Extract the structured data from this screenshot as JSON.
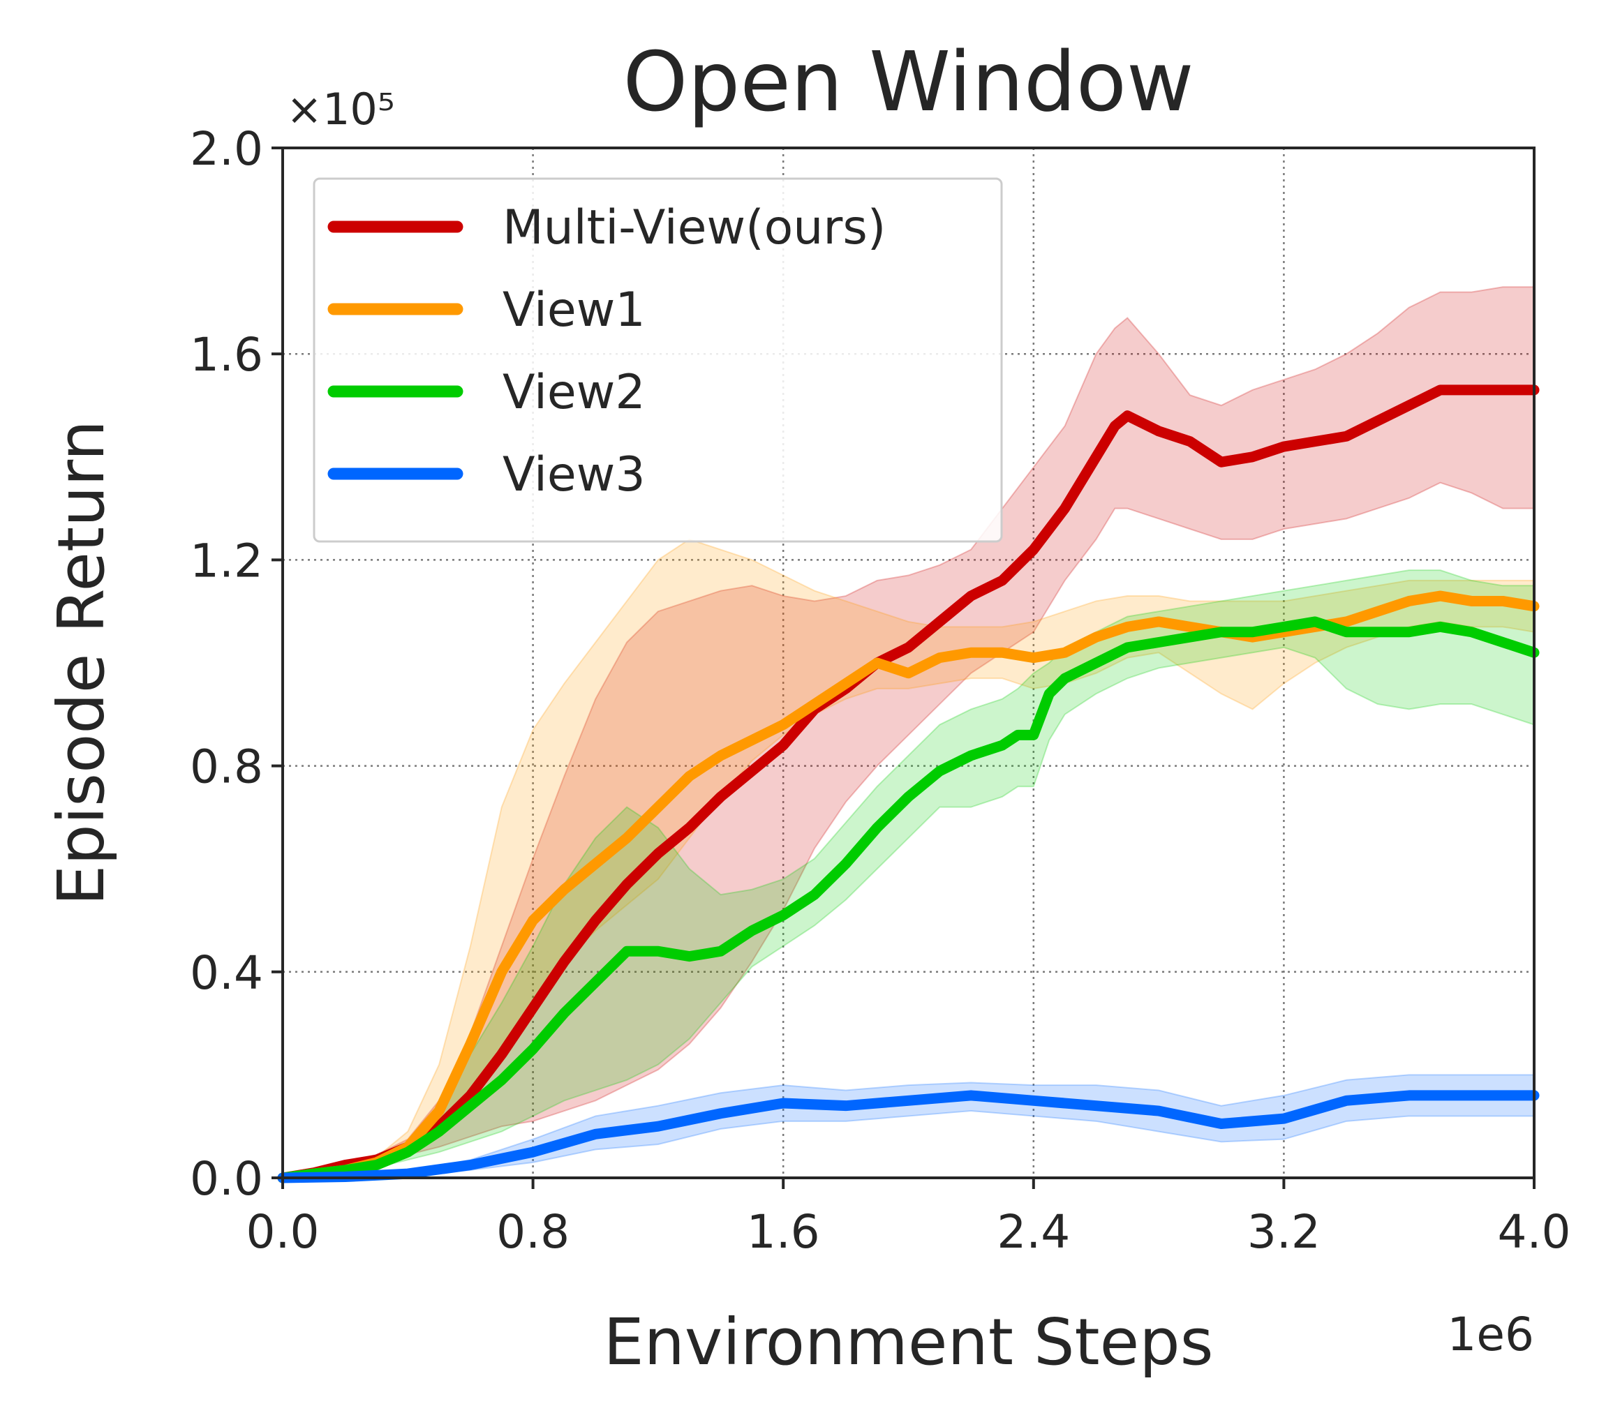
{
  "chart_data": {
    "type": "line",
    "title": "Open Window",
    "xlabel": "Environment Steps",
    "ylabel": "Episode Return",
    "x_multiplier_label": "1e6",
    "y_multiplier_label": "×10⁵",
    "xlim": [
      0,
      4.0
    ],
    "ylim": [
      0,
      2.0
    ],
    "x_ticks": [
      0.0,
      0.8,
      1.6,
      2.4,
      3.2,
      4.0
    ],
    "x_tick_labels": [
      "0.0",
      "0.8",
      "1.6",
      "2.4",
      "3.2",
      "4.0"
    ],
    "y_ticks": [
      0.0,
      0.4,
      0.8,
      1.2,
      1.6,
      2.0
    ],
    "y_tick_labels": [
      "0.0",
      "0.4",
      "0.8",
      "1.2",
      "1.6",
      "2.0"
    ],
    "grid": true,
    "legend_position": "top-left",
    "series": [
      {
        "name": "Multi-View(ours)",
        "color": "#cc0000",
        "x": [
          0,
          0.1,
          0.2,
          0.3,
          0.4,
          0.5,
          0.6,
          0.7,
          0.8,
          0.9,
          1.0,
          1.1,
          1.2,
          1.3,
          1.4,
          1.5,
          1.6,
          1.7,
          1.8,
          1.9,
          2.0,
          2.1,
          2.2,
          2.3,
          2.4,
          2.5,
          2.6,
          2.66,
          2.7,
          2.8,
          2.9,
          3.0,
          3.1,
          3.2,
          3.3,
          3.4,
          3.5,
          3.6,
          3.7,
          3.8,
          3.9,
          4.0
        ],
        "y": [
          0.0,
          0.01,
          0.025,
          0.035,
          0.06,
          0.1,
          0.16,
          0.24,
          0.33,
          0.42,
          0.5,
          0.57,
          0.63,
          0.68,
          0.74,
          0.79,
          0.84,
          0.91,
          0.95,
          1.0,
          1.03,
          1.08,
          1.13,
          1.16,
          1.22,
          1.3,
          1.4,
          1.46,
          1.48,
          1.45,
          1.43,
          1.39,
          1.4,
          1.42,
          1.43,
          1.44,
          1.47,
          1.5,
          1.53,
          1.53,
          1.53,
          1.53
        ],
        "upper": [
          0.0,
          0.012,
          0.03,
          0.045,
          0.075,
          0.15,
          0.28,
          0.45,
          0.62,
          0.78,
          0.93,
          1.04,
          1.1,
          1.12,
          1.14,
          1.15,
          1.13,
          1.12,
          1.13,
          1.16,
          1.17,
          1.19,
          1.22,
          1.3,
          1.38,
          1.46,
          1.6,
          1.65,
          1.67,
          1.6,
          1.52,
          1.5,
          1.53,
          1.55,
          1.57,
          1.6,
          1.64,
          1.69,
          1.72,
          1.72,
          1.73,
          1.73
        ],
        "lower": [
          0.0,
          0.008,
          0.02,
          0.025,
          0.045,
          0.06,
          0.08,
          0.1,
          0.11,
          0.13,
          0.15,
          0.18,
          0.21,
          0.26,
          0.33,
          0.42,
          0.52,
          0.64,
          0.73,
          0.8,
          0.86,
          0.92,
          0.98,
          1.02,
          1.06,
          1.16,
          1.24,
          1.3,
          1.3,
          1.28,
          1.26,
          1.24,
          1.24,
          1.26,
          1.27,
          1.28,
          1.3,
          1.32,
          1.35,
          1.33,
          1.3,
          1.3
        ]
      },
      {
        "name": "View1",
        "color": "#ff9900",
        "x": [
          0,
          0.1,
          0.2,
          0.3,
          0.4,
          0.5,
          0.6,
          0.7,
          0.8,
          0.9,
          1.0,
          1.1,
          1.2,
          1.3,
          1.4,
          1.5,
          1.6,
          1.7,
          1.8,
          1.9,
          2.0,
          2.1,
          2.2,
          2.3,
          2.4,
          2.5,
          2.6,
          2.7,
          2.8,
          2.9,
          3.0,
          3.1,
          3.2,
          3.3,
          3.4,
          3.5,
          3.6,
          3.7,
          3.8,
          3.9,
          4.0
        ],
        "y": [
          0.0,
          0.008,
          0.015,
          0.03,
          0.06,
          0.13,
          0.26,
          0.4,
          0.5,
          0.56,
          0.61,
          0.66,
          0.72,
          0.78,
          0.82,
          0.85,
          0.88,
          0.92,
          0.96,
          1.0,
          0.98,
          1.01,
          1.02,
          1.02,
          1.01,
          1.02,
          1.05,
          1.07,
          1.08,
          1.07,
          1.06,
          1.05,
          1.06,
          1.07,
          1.08,
          1.1,
          1.12,
          1.13,
          1.12,
          1.12,
          1.11
        ],
        "upper": [
          0.0,
          0.01,
          0.02,
          0.04,
          0.09,
          0.22,
          0.45,
          0.72,
          0.87,
          0.96,
          1.04,
          1.12,
          1.2,
          1.24,
          1.22,
          1.2,
          1.17,
          1.14,
          1.12,
          1.1,
          1.08,
          1.07,
          1.07,
          1.07,
          1.08,
          1.1,
          1.12,
          1.13,
          1.13,
          1.12,
          1.12,
          1.12,
          1.12,
          1.13,
          1.14,
          1.15,
          1.16,
          1.16,
          1.16,
          1.16,
          1.16
        ],
        "lower": [
          0.0,
          0.006,
          0.01,
          0.02,
          0.04,
          0.08,
          0.16,
          0.24,
          0.33,
          0.42,
          0.48,
          0.53,
          0.58,
          0.66,
          0.74,
          0.81,
          0.86,
          0.9,
          0.93,
          0.95,
          0.95,
          0.96,
          0.97,
          0.97,
          0.95,
          0.96,
          0.98,
          1.01,
          1.02,
          0.98,
          0.94,
          0.91,
          0.96,
          1.0,
          1.03,
          1.05,
          1.07,
          1.08,
          1.07,
          1.07,
          1.06
        ]
      },
      {
        "name": "View2",
        "color": "#00cc00",
        "x": [
          0,
          0.1,
          0.2,
          0.3,
          0.4,
          0.5,
          0.6,
          0.7,
          0.8,
          0.9,
          1.0,
          1.1,
          1.2,
          1.3,
          1.4,
          1.5,
          1.6,
          1.7,
          1.8,
          1.9,
          2.0,
          2.1,
          2.2,
          2.3,
          2.35,
          2.4,
          2.45,
          2.5,
          2.6,
          2.7,
          2.8,
          2.9,
          3.0,
          3.1,
          3.2,
          3.3,
          3.4,
          3.5,
          3.6,
          3.7,
          3.8,
          3.9,
          4.0
        ],
        "y": [
          0.0,
          0.008,
          0.015,
          0.025,
          0.05,
          0.09,
          0.14,
          0.19,
          0.25,
          0.32,
          0.38,
          0.44,
          0.44,
          0.43,
          0.44,
          0.48,
          0.51,
          0.55,
          0.61,
          0.68,
          0.74,
          0.79,
          0.82,
          0.84,
          0.86,
          0.86,
          0.94,
          0.97,
          1.0,
          1.03,
          1.04,
          1.05,
          1.06,
          1.06,
          1.07,
          1.08,
          1.06,
          1.06,
          1.06,
          1.07,
          1.06,
          1.04,
          1.02
        ],
        "upper": [
          0.0,
          0.01,
          0.02,
          0.03,
          0.07,
          0.14,
          0.24,
          0.34,
          0.45,
          0.57,
          0.66,
          0.72,
          0.68,
          0.6,
          0.55,
          0.56,
          0.58,
          0.62,
          0.69,
          0.76,
          0.82,
          0.88,
          0.91,
          0.93,
          0.95,
          0.98,
          1.0,
          1.03,
          1.06,
          1.09,
          1.1,
          1.11,
          1.12,
          1.13,
          1.14,
          1.15,
          1.16,
          1.17,
          1.18,
          1.18,
          1.16,
          1.15,
          1.15
        ],
        "lower": [
          0.0,
          0.006,
          0.01,
          0.02,
          0.035,
          0.05,
          0.07,
          0.09,
          0.12,
          0.15,
          0.17,
          0.19,
          0.22,
          0.27,
          0.34,
          0.41,
          0.45,
          0.49,
          0.54,
          0.6,
          0.66,
          0.72,
          0.72,
          0.74,
          0.76,
          0.76,
          0.85,
          0.9,
          0.94,
          0.97,
          0.99,
          1.0,
          1.01,
          1.02,
          1.03,
          1.01,
          0.95,
          0.92,
          0.91,
          0.92,
          0.92,
          0.9,
          0.88
        ]
      },
      {
        "name": "View3",
        "color": "#0066ff",
        "x": [
          0,
          0.2,
          0.4,
          0.6,
          0.8,
          1.0,
          1.2,
          1.4,
          1.6,
          1.8,
          2.0,
          2.2,
          2.4,
          2.6,
          2.8,
          3.0,
          3.2,
          3.4,
          3.6,
          3.8,
          4.0
        ],
        "y": [
          0.0,
          0.002,
          0.008,
          0.025,
          0.05,
          0.085,
          0.1,
          0.125,
          0.145,
          0.14,
          0.15,
          0.16,
          0.15,
          0.14,
          0.13,
          0.105,
          0.115,
          0.15,
          0.16,
          0.16,
          0.16
        ],
        "upper": [
          0.0,
          0.004,
          0.012,
          0.035,
          0.075,
          0.12,
          0.14,
          0.165,
          0.18,
          0.17,
          0.18,
          0.185,
          0.18,
          0.18,
          0.17,
          0.14,
          0.16,
          0.19,
          0.2,
          0.2,
          0.2
        ],
        "lower": [
          0.0,
          0.001,
          0.004,
          0.015,
          0.03,
          0.055,
          0.065,
          0.095,
          0.11,
          0.11,
          0.12,
          0.13,
          0.12,
          0.11,
          0.09,
          0.07,
          0.075,
          0.11,
          0.12,
          0.12,
          0.12
        ]
      }
    ]
  }
}
